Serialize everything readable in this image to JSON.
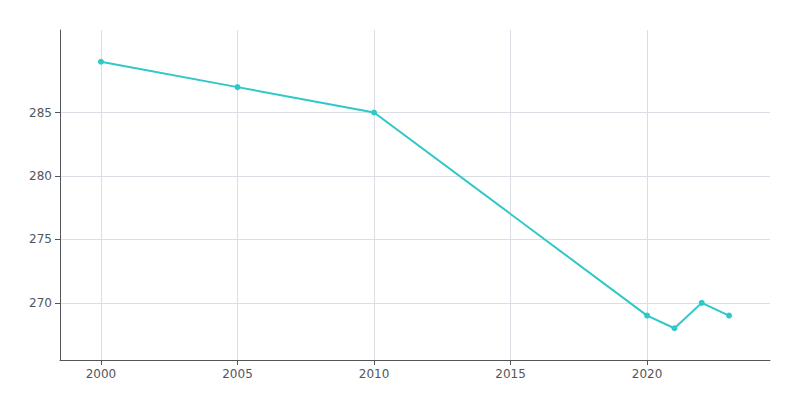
{
  "chart_data": {
    "type": "line",
    "x": [
      2000,
      2005,
      2010,
      2020,
      2021,
      2022,
      2023
    ],
    "values": [
      289,
      287,
      285,
      269,
      268,
      270,
      269
    ],
    "color": "#2ec8c8",
    "marker": "circle",
    "xlim": [
      1998.5,
      2024.5
    ],
    "xticks": [
      2000,
      2005,
      2010,
      2015,
      2020
    ],
    "ylim": [
      265.5,
      291.5
    ],
    "yticks": [
      270,
      275,
      280,
      285
    ],
    "grid": true
  }
}
